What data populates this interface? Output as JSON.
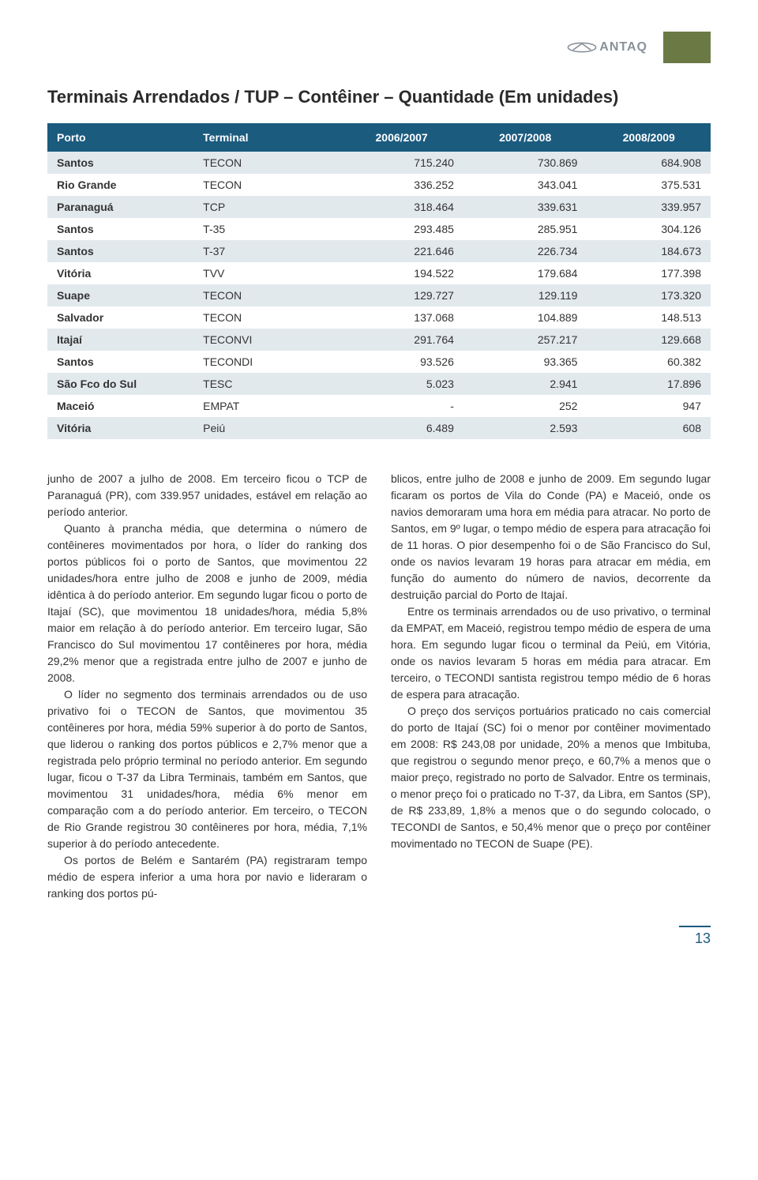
{
  "logo_text": "ANTAQ",
  "title": "Terminais Arrendados / TUP – Contêiner – Quantidade (Em unidades)",
  "table": {
    "columns": [
      "Porto",
      "Terminal",
      "2006/2007",
      "2007/2008",
      "2008/2009"
    ],
    "rows": [
      [
        "Santos",
        "TECON",
        "715.240",
        "730.869",
        "684.908"
      ],
      [
        "Rio Grande",
        "TECON",
        "336.252",
        "343.041",
        "375.531"
      ],
      [
        "Paranaguá",
        "TCP",
        "318.464",
        "339.631",
        "339.957"
      ],
      [
        "Santos",
        "T-35",
        "293.485",
        "285.951",
        "304.126"
      ],
      [
        "Santos",
        "T-37",
        "221.646",
        "226.734",
        "184.673"
      ],
      [
        "Vitória",
        "TVV",
        "194.522",
        "179.684",
        "177.398"
      ],
      [
        "Suape",
        "TECON",
        "129.727",
        "129.119",
        "173.320"
      ],
      [
        "Salvador",
        "TECON",
        "137.068",
        "104.889",
        "148.513"
      ],
      [
        "Itajaí",
        "TECONVI",
        "291.764",
        "257.217",
        "129.668"
      ],
      [
        "Santos",
        "TECONDI",
        "93.526",
        "93.365",
        "60.382"
      ],
      [
        "São Fco do Sul",
        "TESC",
        "5.023",
        "2.941",
        "17.896"
      ],
      [
        "Maceió",
        "EMPAT",
        "-",
        "252",
        "947"
      ],
      [
        "Vitória",
        "Peiú",
        "6.489",
        "2.593",
        "608"
      ]
    ],
    "header_bg": "#1b5b7e",
    "header_color": "#ffffff",
    "row_odd_bg": "#e2e9ed",
    "row_even_bg": "#ffffff"
  },
  "col_left": [
    "junho de 2007 a julho de 2008. Em terceiro ficou o TCP de Paranaguá (PR), com 339.957 unidades, estável em relação ao período anterior.",
    "Quanto à prancha média, que determina o número de contêineres movimentados por hora, o líder do ranking dos portos públicos foi o porto de Santos, que movimentou 22 unidades/hora entre julho de 2008 e junho de 2009, média idêntica à do período anterior. Em segundo lugar ficou o porto de Itajaí (SC), que movimentou 18 unidades/hora, média 5,8% maior em relação à do período anterior. Em terceiro lugar, São Francisco do Sul movimentou 17 contêineres por hora, média 29,2% menor que a registrada entre julho de 2007 e junho de 2008.",
    "O líder no segmento dos terminais arrendados ou de uso privativo foi o TECON de Santos, que movimentou 35 contêineres por hora, média 59% superior à do porto de Santos, que liderou o ranking dos portos públicos e 2,7% menor que a registrada pelo próprio terminal no período anterior. Em segundo lugar, ficou o T-37 da Libra Terminais, também em Santos, que movimentou 31 unidades/hora, média 6% menor em comparação com a do período anterior. Em terceiro, o TECON de Rio Grande registrou 30 contêineres por hora, média, 7,1% superior à do período antecedente.",
    "Os portos de Belém e Santarém (PA) registraram tempo médio de espera inferior a uma hora por navio e lideraram o ranking dos portos pú-"
  ],
  "col_right": [
    "blicos, entre julho de 2008 e junho de 2009. Em segundo lugar ficaram os portos de Vila do Conde (PA) e Maceió, onde os navios demoraram uma hora em média para atracar. No porto de Santos, em 9º lugar, o tempo médio de espera para atracação foi de 11 horas. O pior desempenho foi o de São Francisco do Sul, onde os navios levaram 19 horas para atracar em média, em função do aumento do número de navios, decorrente da destruição parcial do Porto de Itajaí.",
    "Entre os terminais arrendados ou de uso privativo, o terminal da EMPAT, em Maceió, registrou tempo médio de espera de uma hora. Em segundo lugar ficou o terminal da Peiú, em Vitória, onde os navios levaram 5 horas em média para atracar. Em terceiro, o TECONDI santista registrou tempo médio de 6 horas de espera para atracação.",
    "O preço dos serviços portuários praticado no cais comercial do porto de Itajaí (SC) foi o menor por contêiner movimentado em 2008: R$ 243,08 por unidade, 20% a menos que Imbituba, que registrou o segundo menor preço, e 60,7% a menos que o maior preço, registrado no porto de Salvador. Entre os terminais, o menor preço foi o praticado no T-37, da Libra, em Santos (SP), de R$ 233,89, 1,8% a menos que o do segundo colocado, o TECONDI de Santos, e 50,4% menor que o preço por contêiner movimentado no TECON de Suape (PE)."
  ],
  "page_number": "13"
}
